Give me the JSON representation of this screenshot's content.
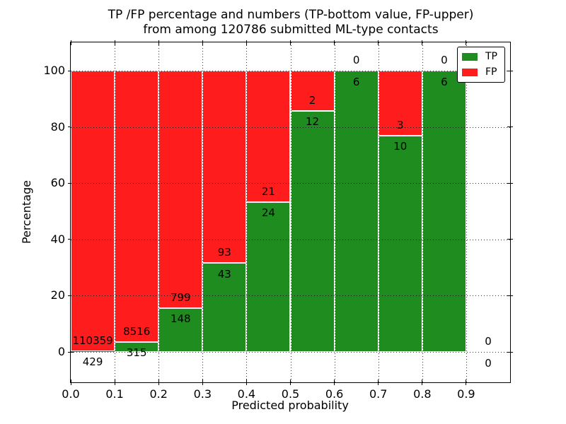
{
  "title": {
    "line1": "TP /FP percentage and numbers (TP-bottom value, FP-upper)",
    "line2": "from among 120786 submitted ML-type contacts"
  },
  "axes": {
    "ylabel": "Percentage",
    "xlabel": "Predicted probability",
    "ytick_labels": [
      "0",
      "20",
      "40",
      "60",
      "80",
      "100"
    ],
    "xtick_labels": [
      "0.0",
      "0.1",
      "0.2",
      "0.3",
      "0.4",
      "0.5",
      "0.6",
      "0.7",
      "0.8",
      "0.9"
    ]
  },
  "legend": {
    "items": [
      {
        "label": "TP",
        "color": "#1e8c1e"
      },
      {
        "label": "FP",
        "color": "#ff1c1c"
      }
    ]
  },
  "colors": {
    "tp_green": "#1e8c1e",
    "fp_red": "#ff1c1c",
    "grid": "#000000",
    "axis": "#000000",
    "background": "#ffffff"
  },
  "chart_data": {
    "type": "bar",
    "stacked": true,
    "normalized_to_percent": true,
    "title": "TP /FP percentage and numbers (TP-bottom value, FP-upper) from among 120786 submitted ML-type contacts",
    "xlabel": "Predicted probability",
    "ylabel": "Percentage",
    "total_contacts": 120786,
    "bin_edges": [
      0.0,
      0.1,
      0.2,
      0.3,
      0.4,
      0.5,
      0.6,
      0.7,
      0.8,
      0.9,
      1.0
    ],
    "xticks": [
      0.0,
      0.1,
      0.2,
      0.3,
      0.4,
      0.5,
      0.6,
      0.7,
      0.8,
      0.9
    ],
    "yticks": [
      0,
      20,
      40,
      60,
      80,
      100
    ],
    "xlim": [
      0.0,
      1.0
    ],
    "ylim": [
      -10.8,
      110.1
    ],
    "grid": true,
    "legend_position": "upper right",
    "label_note": "TP count printed below the TP/FP boundary, FP count printed above it",
    "series": [
      {
        "name": "TP",
        "color": "#1e8c1e",
        "counts": [
          429,
          315,
          148,
          43,
          24,
          12,
          6,
          10,
          6,
          0
        ]
      },
      {
        "name": "FP",
        "color": "#ff1c1c",
        "counts": [
          110359,
          8516,
          799,
          93,
          21,
          2,
          0,
          3,
          0,
          0
        ]
      }
    ]
  }
}
